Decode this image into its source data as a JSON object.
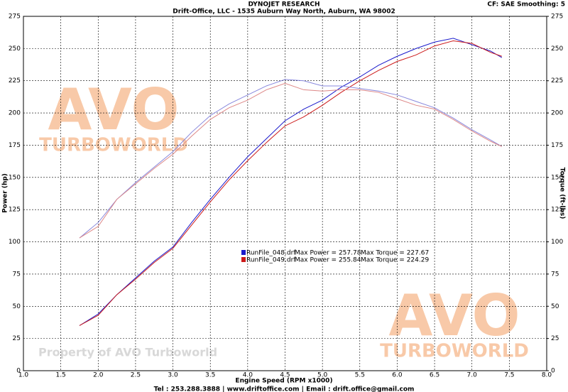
{
  "chart_data": {
    "type": "line",
    "title": "DYNOJET RESEARCH",
    "subtitle": "Drift-Office, LLC - 1535 Auburn Way North, Auburn, WA 98002",
    "settings_text": "CF: SAE  Smoothing: 5",
    "x_label": "Engine Speed (RPM x1000)",
    "y_label": "Power (hp)",
    "y2_label": "Torque (ft-lbs)",
    "footer": "Tel : 253.288.3888 | www.driftoffice.com | Email : drift.office@gmail.com",
    "watermarks": [
      "AVO",
      "TURBOWORLD",
      "Property of AVO Turboworld"
    ],
    "grid": true,
    "x": [
      1.75,
      2.0,
      2.25,
      2.5,
      2.75,
      3.0,
      3.25,
      3.5,
      3.75,
      4.0,
      4.25,
      4.5,
      4.75,
      5.0,
      5.25,
      5.5,
      5.75,
      6.0,
      6.25,
      6.5,
      6.75,
      7.0,
      7.25,
      7.4
    ],
    "xlim": [
      1,
      8
    ],
    "xticks": [
      {
        "value": 1,
        "label": "1.0"
      },
      {
        "value": 1.5,
        "label": "1.5"
      },
      {
        "value": 2,
        "label": "2.0"
      },
      {
        "value": 2.5,
        "label": "2.5"
      },
      {
        "value": 3,
        "label": "3.0"
      },
      {
        "value": 3.5,
        "label": "3.5"
      },
      {
        "value": 4,
        "label": "4.0"
      },
      {
        "value": 4.5,
        "label": "4.5"
      },
      {
        "value": 5,
        "label": "5.0"
      },
      {
        "value": 5.5,
        "label": "5.5"
      },
      {
        "value": 6,
        "label": "6.0"
      },
      {
        "value": 6.5,
        "label": "6.5"
      },
      {
        "value": 7,
        "label": "7.0"
      },
      {
        "value": 7.5,
        "label": "7.5"
      },
      {
        "value": 8,
        "label": "8.0"
      }
    ],
    "ylim": [
      0,
      275
    ],
    "yticks": [
      0,
      25,
      50,
      75,
      100,
      125,
      150,
      175,
      200,
      225,
      250,
      275
    ],
    "y2lim": [
      0,
      275
    ],
    "y2ticks": [
      0,
      25,
      50,
      75,
      100,
      125,
      150,
      175,
      200,
      225,
      250,
      275
    ],
    "legend": [
      {
        "file": "RunFile_048.drf",
        "max_power": "Max Power = 257.78",
        "max_torque": "Max Torque = 227.67",
        "color": "#1a1acc"
      },
      {
        "file": "RunFile_049.drf",
        "max_power": "Max Power = 255.84",
        "max_torque": "Max Torque = 224.29",
        "color": "#cc1a1a"
      }
    ],
    "series": [
      {
        "color": "#1a1acc",
        "axis": "y",
        "values": [
          35,
          44,
          59,
          72,
          85,
          96,
          115,
          133,
          150,
          166,
          180,
          194,
          203,
          210,
          220,
          228,
          237,
          244,
          250,
          255,
          258,
          253,
          248,
          243
        ]
      },
      {
        "color": "#cc1a1a",
        "axis": "y",
        "values": [
          35,
          43,
          59,
          71,
          84,
          95,
          113,
          131,
          148,
          163,
          177,
          190,
          197,
          206,
          216,
          225,
          233,
          240,
          245,
          252,
          256,
          254,
          247,
          244
        ]
      },
      {
        "color": "#8888dd",
        "axis": "y2",
        "values": [
          103,
          115,
          133,
          146,
          158,
          170,
          185,
          198,
          207,
          214,
          221,
          226,
          225,
          221,
          221,
          219,
          217,
          214,
          209,
          204,
          196,
          187,
          179,
          174
        ]
      },
      {
        "color": "#dd8888",
        "axis": "y2",
        "values": [
          103,
          112,
          133,
          145,
          157,
          168,
          182,
          195,
          204,
          210,
          218,
          223,
          218,
          217,
          218,
          218,
          216,
          211,
          206,
          203,
          195,
          186,
          178,
          174
        ]
      }
    ]
  }
}
